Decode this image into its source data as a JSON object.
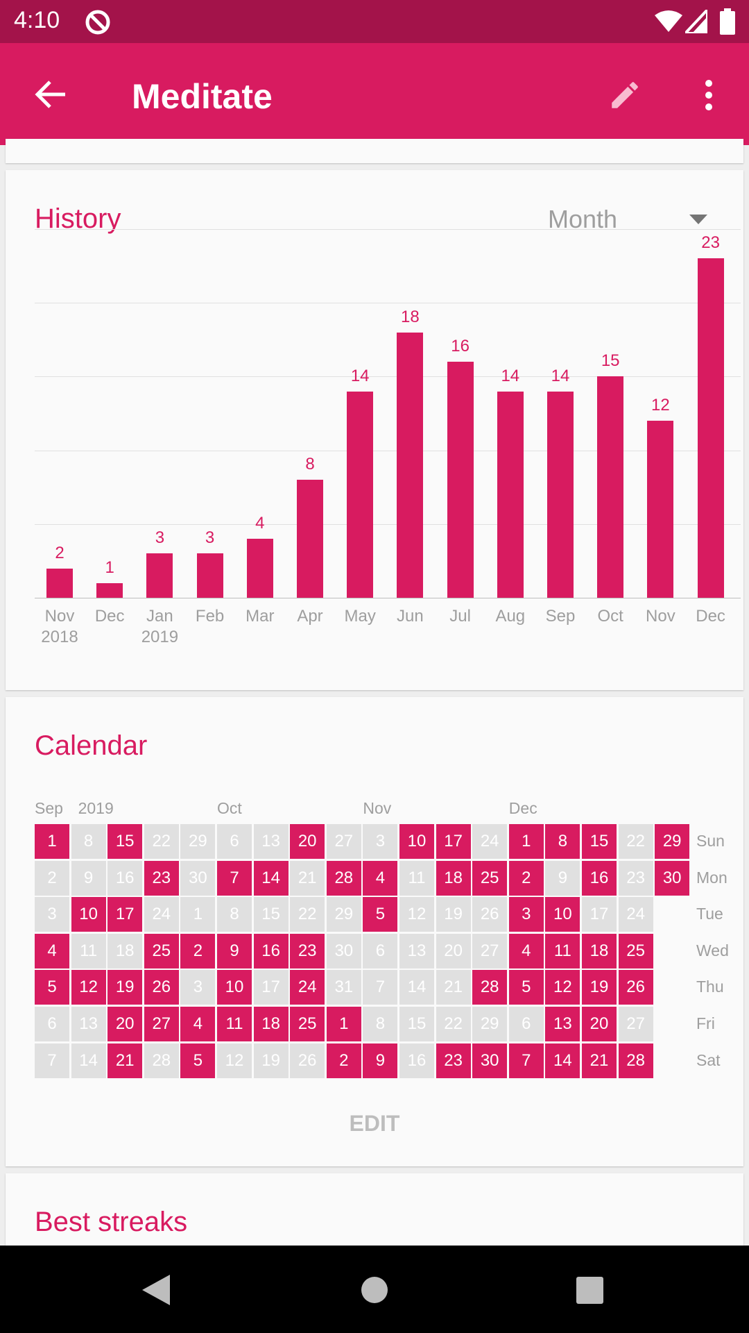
{
  "status_bar": {
    "time": "4:10",
    "icons": [
      "do-not-disturb-icon",
      "wifi-icon",
      "signal-icon",
      "battery-icon"
    ]
  },
  "app_bar": {
    "title": "Meditate",
    "back_icon": "arrow-left-icon",
    "edit_icon": "pencil-icon",
    "more_icon": "more-vert-icon"
  },
  "colors": {
    "accent": "#d81b60",
    "status_bar": "#a3134a",
    "inactive_cell": "#e0e0e0"
  },
  "history": {
    "title": "History",
    "period_select": "Month",
    "chart_data": {
      "type": "bar",
      "categories": [
        "Nov 2018",
        "Dec",
        "Jan 2019",
        "Feb",
        "Mar",
        "Apr",
        "May",
        "Jun",
        "Jul",
        "Aug",
        "Sep",
        "Oct",
        "Nov",
        "Dec"
      ],
      "tick_labels": [
        [
          "Nov",
          "2018"
        ],
        [
          "Dec",
          ""
        ],
        [
          "Jan",
          "2019"
        ],
        [
          "Feb",
          ""
        ],
        [
          "Mar",
          ""
        ],
        [
          "Apr",
          ""
        ],
        [
          "May",
          ""
        ],
        [
          "Jun",
          ""
        ],
        [
          "Jul",
          ""
        ],
        [
          "Aug",
          ""
        ],
        [
          "Sep",
          ""
        ],
        [
          "Oct",
          ""
        ],
        [
          "Nov",
          ""
        ],
        [
          "Dec",
          ""
        ]
      ],
      "values": [
        2,
        1,
        3,
        3,
        4,
        8,
        14,
        18,
        16,
        14,
        14,
        15,
        12,
        23
      ],
      "ylim": [
        0,
        25
      ],
      "grid": true
    }
  },
  "calendar": {
    "title": "Calendar",
    "month_labels": [
      {
        "label": "Sep",
        "col": 0
      },
      {
        "label": "2019",
        "col": 1
      },
      {
        "label": "Oct",
        "col": 5
      },
      {
        "label": "Nov",
        "col": 9
      },
      {
        "label": "Dec",
        "col": 13
      }
    ],
    "weekdays": [
      "Sun",
      "Mon",
      "Tue",
      "Wed",
      "Thu",
      "Fri",
      "Sat"
    ],
    "days": [
      [
        1,
        8,
        15,
        22,
        29,
        6,
        13,
        20,
        27,
        3,
        10,
        17,
        24,
        1,
        8,
        15,
        22,
        29
      ],
      [
        2,
        9,
        16,
        23,
        30,
        7,
        14,
        21,
        28,
        4,
        11,
        18,
        25,
        2,
        9,
        16,
        23,
        30
      ],
      [
        3,
        10,
        17,
        24,
        1,
        8,
        15,
        22,
        29,
        5,
        12,
        19,
        26,
        3,
        10,
        17,
        24
      ],
      [
        4,
        11,
        18,
        25,
        2,
        9,
        16,
        23,
        30,
        6,
        13,
        20,
        27,
        4,
        11,
        18,
        25
      ],
      [
        5,
        12,
        19,
        26,
        3,
        10,
        17,
        24,
        31,
        7,
        14,
        21,
        28,
        5,
        12,
        19,
        26
      ],
      [
        6,
        13,
        20,
        27,
        4,
        11,
        18,
        25,
        1,
        8,
        15,
        22,
        29,
        6,
        13,
        20,
        27
      ],
      [
        7,
        14,
        21,
        28,
        5,
        12,
        19,
        26,
        2,
        9,
        16,
        23,
        30,
        7,
        14,
        21,
        28
      ]
    ],
    "checked": [
      [
        1,
        0,
        1,
        0,
        0,
        0,
        0,
        1,
        0,
        0,
        1,
        1,
        0,
        1,
        1,
        1,
        0,
        1
      ],
      [
        0,
        0,
        0,
        1,
        0,
        1,
        1,
        0,
        1,
        1,
        0,
        1,
        1,
        1,
        0,
        1,
        0,
        1
      ],
      [
        0,
        1,
        1,
        0,
        0,
        0,
        0,
        0,
        0,
        1,
        0,
        0,
        0,
        1,
        1,
        0,
        0
      ],
      [
        1,
        0,
        0,
        1,
        1,
        1,
        1,
        1,
        0,
        0,
        0,
        0,
        0,
        1,
        1,
        1,
        1
      ],
      [
        1,
        1,
        1,
        1,
        0,
        1,
        0,
        1,
        0,
        0,
        0,
        0,
        1,
        1,
        1,
        1,
        1
      ],
      [
        0,
        0,
        1,
        1,
        1,
        1,
        1,
        1,
        1,
        0,
        0,
        0,
        0,
        0,
        1,
        1,
        0
      ],
      [
        0,
        0,
        1,
        0,
        1,
        0,
        0,
        0,
        1,
        1,
        0,
        1,
        1,
        1,
        1,
        1,
        1
      ]
    ],
    "edit_label": "EDIT"
  },
  "best_streaks": {
    "title": "Best streaks"
  },
  "nav_bar": {
    "back": "back-triangle-icon",
    "home": "home-circle-icon",
    "recents": "recents-square-icon"
  }
}
